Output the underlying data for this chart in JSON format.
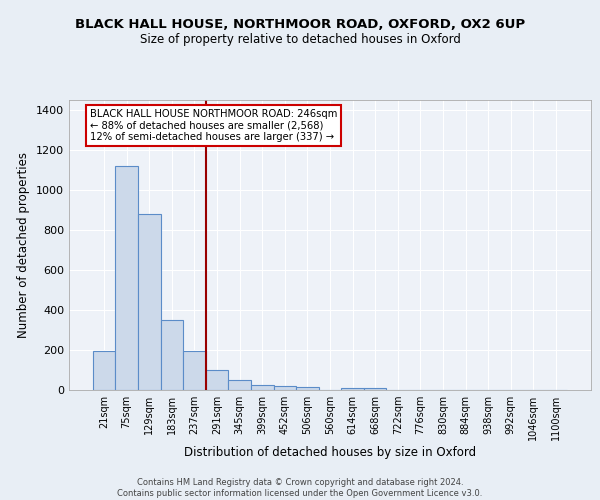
{
  "title1": "BLACK HALL HOUSE, NORTHMOOR ROAD, OXFORD, OX2 6UP",
  "title2": "Size of property relative to detached houses in Oxford",
  "xlabel": "Distribution of detached houses by size in Oxford",
  "ylabel": "Number of detached properties",
  "categories": [
    "21sqm",
    "75sqm",
    "129sqm",
    "183sqm",
    "237sqm",
    "291sqm",
    "345sqm",
    "399sqm",
    "452sqm",
    "506sqm",
    "560sqm",
    "614sqm",
    "668sqm",
    "722sqm",
    "776sqm",
    "830sqm",
    "884sqm",
    "938sqm",
    "992sqm",
    "1046sqm",
    "1100sqm"
  ],
  "values": [
    193,
    1120,
    880,
    350,
    193,
    100,
    52,
    25,
    22,
    15,
    0,
    12,
    12,
    0,
    0,
    0,
    0,
    0,
    0,
    0,
    0
  ],
  "bar_color": "#ccd9ea",
  "bar_edge_color": "#5b8cc8",
  "vline_x_index": 4.5,
  "vline_color": "#990000",
  "annotation_text": "BLACK HALL HOUSE NORTHMOOR ROAD: 246sqm\n← 88% of detached houses are smaller (2,568)\n12% of semi-detached houses are larger (337) →",
  "annotation_box_edge": "#cc0000",
  "footer": "Contains HM Land Registry data © Crown copyright and database right 2024.\nContains public sector information licensed under the Open Government Licence v3.0.",
  "ylim": [
    0,
    1450
  ],
  "yticks": [
    0,
    200,
    400,
    600,
    800,
    1000,
    1200,
    1400
  ],
  "bg_color": "#e8eef5",
  "plot_bg": "#eef2f8",
  "grid_color": "#ffffff",
  "title_fontsize": 9.5,
  "subtitle_fontsize": 8.5,
  "footer_fontsize": 6.0
}
